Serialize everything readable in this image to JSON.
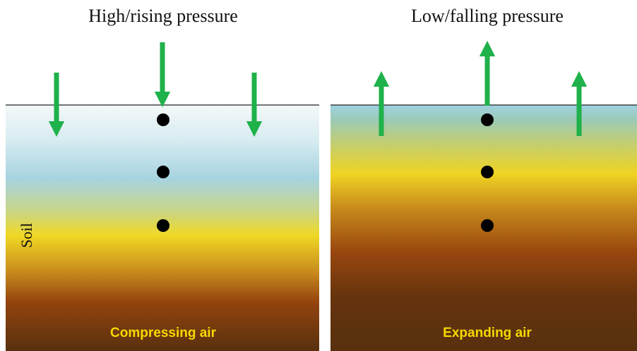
{
  "panels": [
    {
      "title": "High/rising pressure",
      "caption": "Compressing air"
    },
    {
      "title": "Low/falling pressure",
      "caption": "Expanding air"
    }
  ],
  "soil_label": "Soil"
}
